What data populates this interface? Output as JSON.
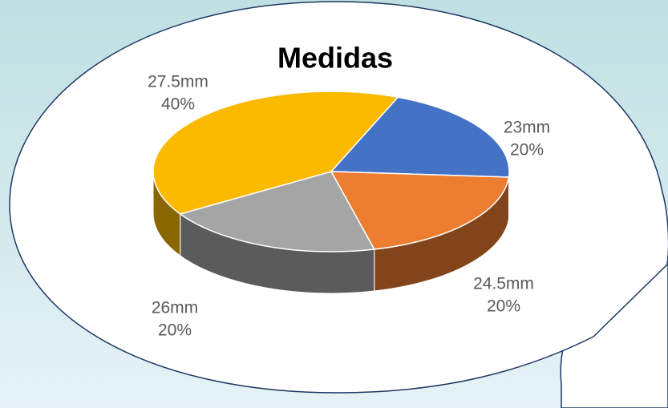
{
  "chart_data": {
    "type": "pie",
    "title": "Medidas",
    "categories": [
      "23mm",
      "24.5mm",
      "26mm",
      "27.5mm"
    ],
    "values": [
      20,
      20,
      20,
      40
    ],
    "value_labels": [
      "20%",
      "20%",
      "20%",
      "40%"
    ],
    "colors": [
      "#4472c4",
      "#ed7d31",
      "#a5a5a5",
      "#fbb900"
    ]
  }
}
